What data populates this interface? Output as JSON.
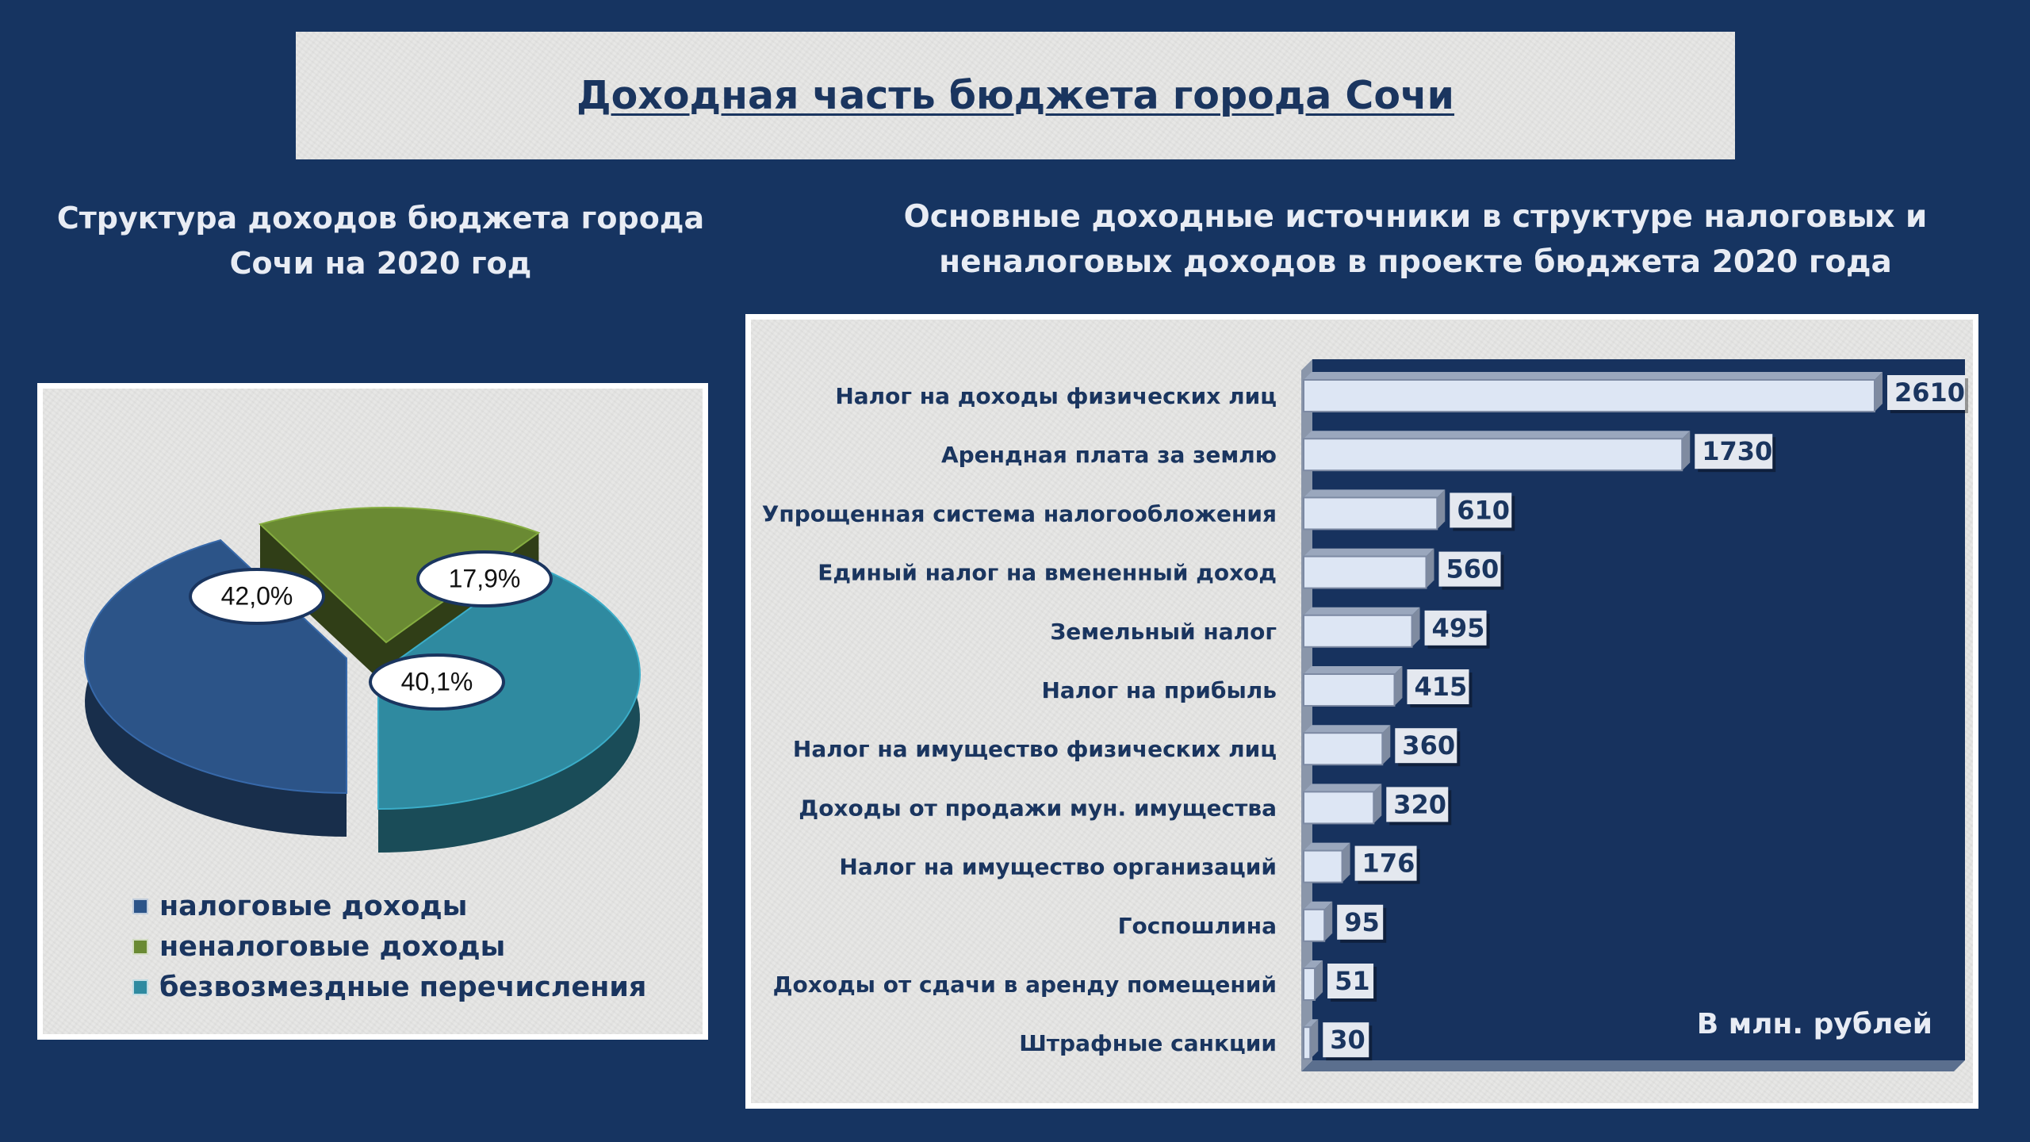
{
  "title": "Доходная часть бюджета города Сочи",
  "left_title": [
    "Структура доходов бюджета города",
    "Сочи на 2020 год"
  ],
  "right_title": [
    "Основные доходные источники в структуре налоговых и",
    "неналоговых доходов в проекте бюджета 2020 года"
  ],
  "unit_note": "В млн. рублей",
  "colors": {
    "background": "#163461",
    "tax": "#2c5488",
    "nontax": "#6a8a33",
    "transfers": "#2f8aa0",
    "bar_fill": "#dde6f4",
    "bar_plot_bg": "#17325e"
  },
  "chart_data": [
    {
      "type": "pie",
      "title": "Структура доходов бюджета города Сочи на 2020 год",
      "legend_position": "bottom-left",
      "slices": [
        {
          "name": "налоговые доходы",
          "value": 42.0,
          "label": "42,0%",
          "color": "#2c5488"
        },
        {
          "name": "неналоговые доходы",
          "value": 17.9,
          "label": "17,9%",
          "color": "#6a8a33"
        },
        {
          "name": "безвозмездные перечисления",
          "value": 40.1,
          "label": "40,1%",
          "color": "#2f8aa0"
        }
      ]
    },
    {
      "type": "bar",
      "orientation": "horizontal",
      "title": "Основные доходные источники в структуре налоговых и неналоговых доходов в проекте бюджета 2020 года",
      "unit": "В млн. рублей",
      "xlim": [
        0,
        2700
      ],
      "categories": [
        "Налог на доходы физических лиц",
        "Арендная плата за землю",
        "Упрощенная система налогообложения",
        "Единый налог на вмененный доход",
        "Земельный налог",
        "Налог на прибыль",
        "Налог на имущество физических лиц",
        "Доходы от продажи мун. имущества",
        "Налог на имущество организаций",
        "Госпошлина",
        "Доходы от сдачи в аренду помещений",
        "Штрафные санкции"
      ],
      "values": [
        2610,
        1730,
        610,
        560,
        495,
        415,
        360,
        320,
        176,
        95,
        51,
        30
      ]
    }
  ]
}
